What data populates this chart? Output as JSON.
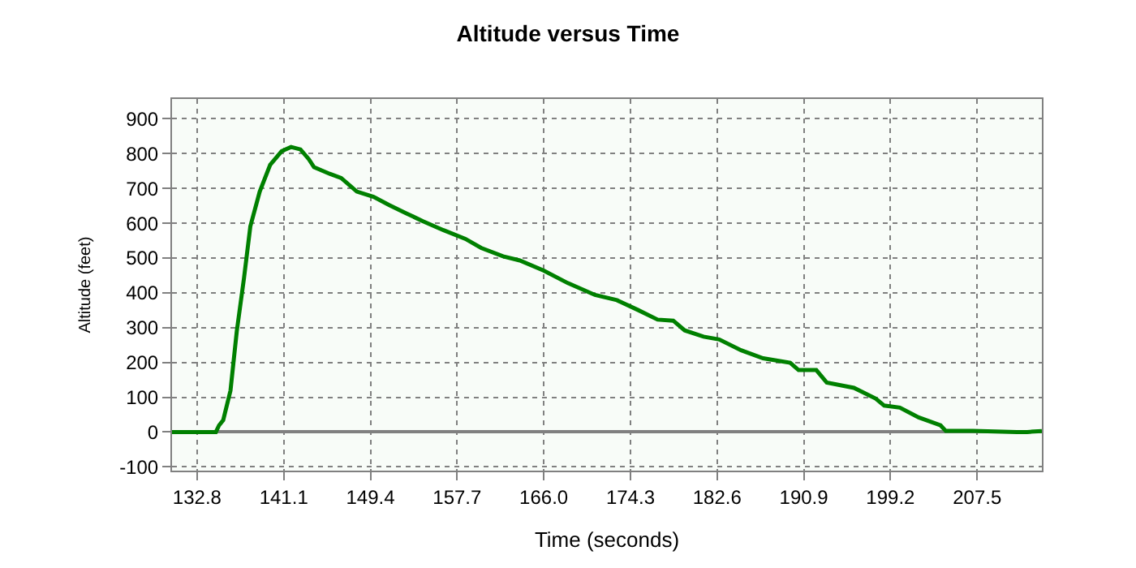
{
  "chart_data": {
    "type": "line",
    "title": "Altitude versus Time",
    "xlabel": "Time (seconds)",
    "ylabel": "Altitude (feet)",
    "x": [
      130.4,
      134.6,
      134.9,
      135.3,
      136.0,
      136.6,
      137.3,
      137.9,
      138.8,
      139.8,
      140.9,
      141.8,
      142.7,
      143.5,
      144.0,
      145.5,
      146.6,
      148.1,
      149.7,
      151.2,
      152.8,
      154.4,
      156.4,
      158.5,
      160.0,
      162.1,
      163.7,
      166.0,
      168.3,
      170.9,
      173.0,
      175.0,
      176.9,
      178.4,
      179.5,
      181.3,
      182.8,
      184.9,
      187.0,
      189.6,
      190.4,
      192.1,
      193.1,
      195.7,
      197.8,
      198.6,
      200.1,
      201.9,
      204.0,
      204.5,
      207.1,
      211.3,
      212.3,
      213.7
    ],
    "series": [
      {
        "color": "#008000",
        "values": [
          0,
          0,
          19,
          34,
          119,
          289,
          444,
          591,
          691,
          768,
          807,
          819,
          812,
          784,
          761,
          742,
          730,
          691,
          676,
          652,
          629,
          606,
          580,
          555,
          529,
          505,
          493,
          464,
          428,
          394,
          379,
          351,
          323,
          320,
          292,
          274,
          266,
          235,
          212,
          199,
          178,
          178,
          142,
          127,
          96,
          76,
          70,
          42,
          19,
          3,
          3,
          0,
          0,
          3
        ]
      }
    ],
    "xlim": [
      130.4,
      213.7
    ],
    "ylim": [
      -111,
      957
    ],
    "xticks": [
      132.8,
      141.1,
      149.4,
      157.7,
      {
        "value": 166,
        "label": "166.0"
      },
      174.3,
      182.6,
      190.9,
      199.2,
      207.5
    ],
    "yticks": [
      -100,
      0,
      100,
      200,
      300,
      400,
      500,
      600,
      700,
      800,
      900
    ],
    "grid": true,
    "marker": "none",
    "line_style": "solid"
  }
}
